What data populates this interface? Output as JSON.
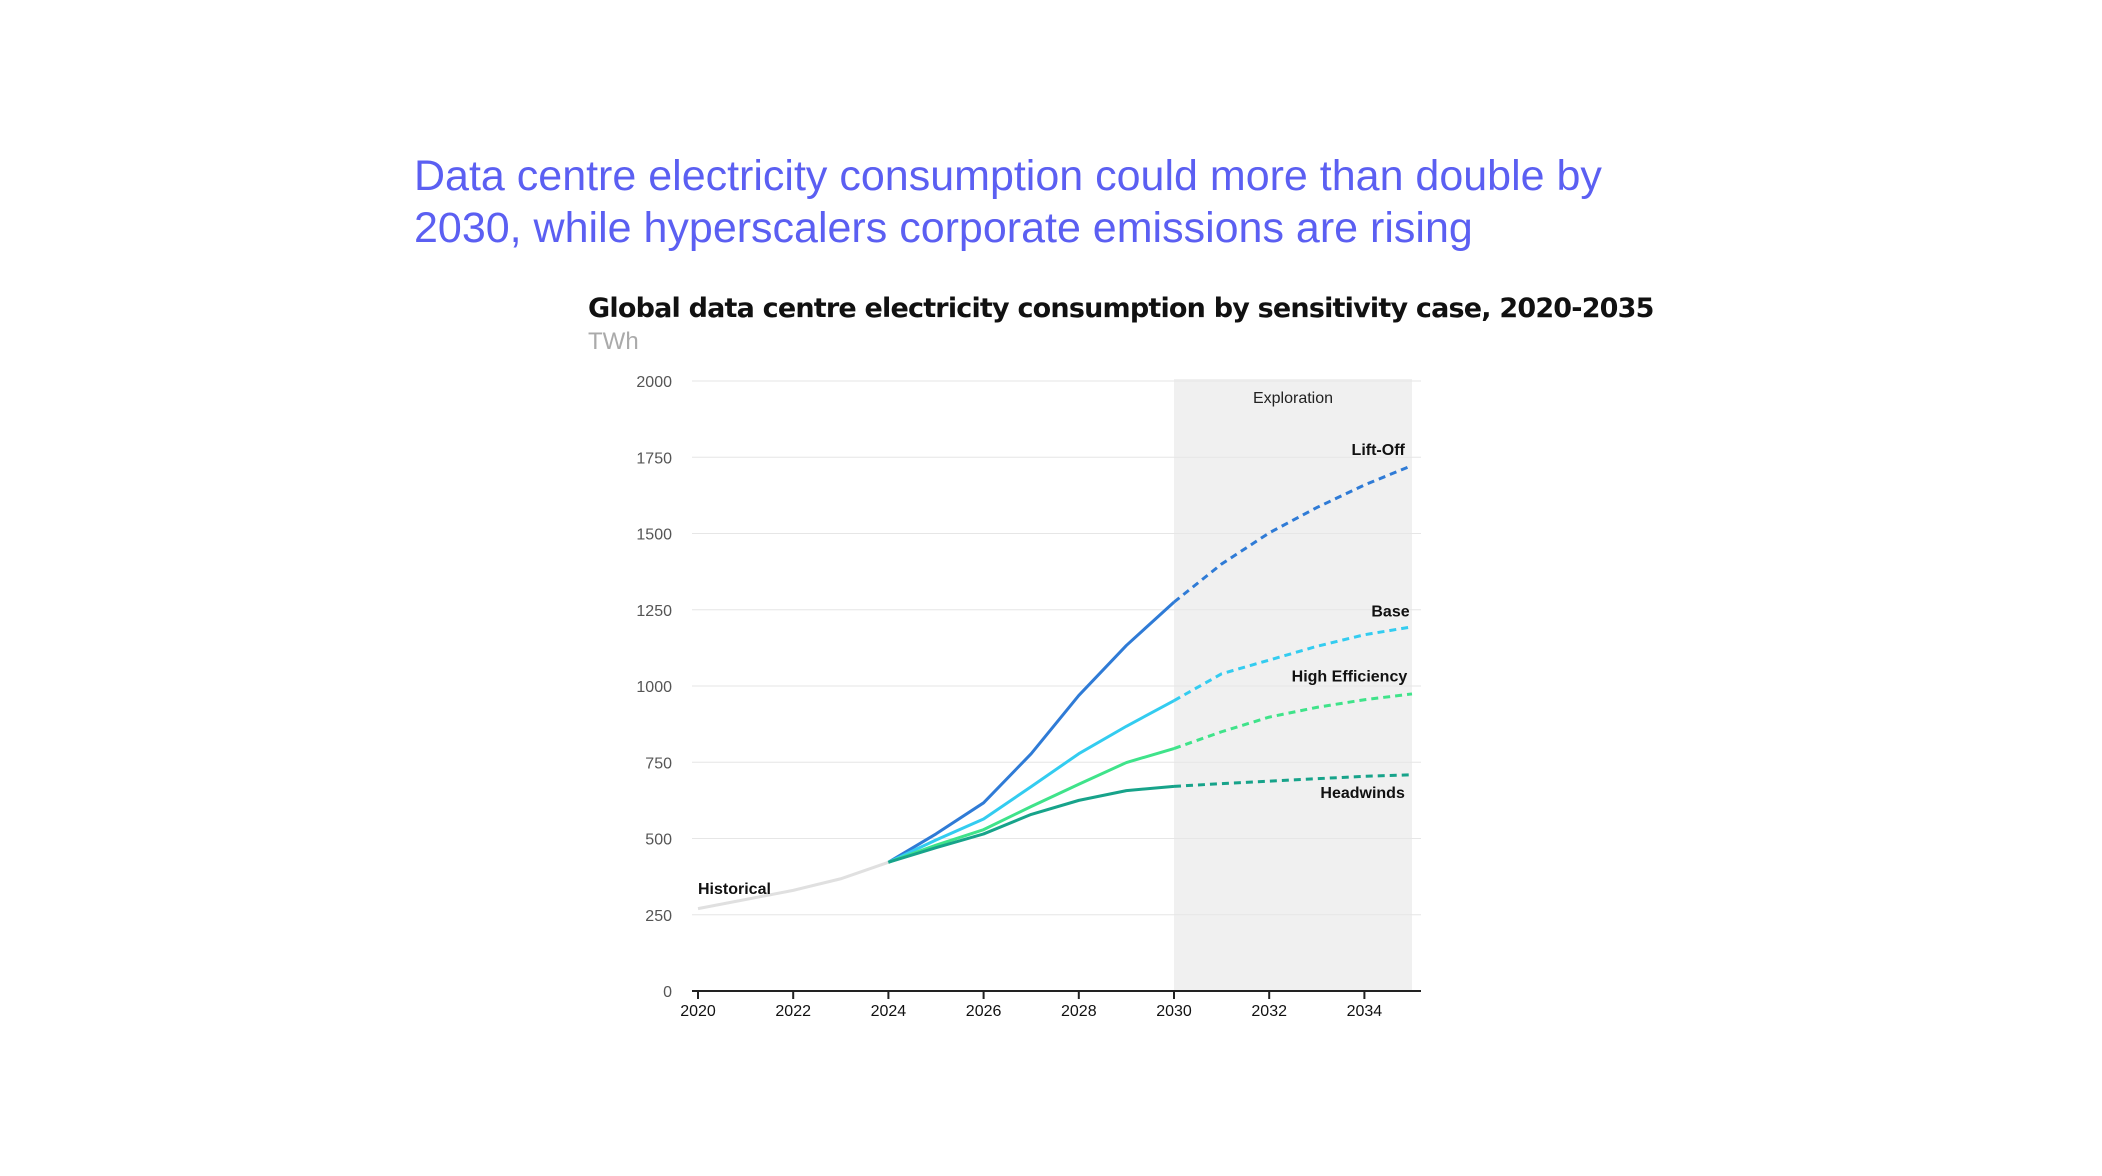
{
  "headline": "Data centre electricity consumption could more than double by 2030, while hyperscalers corporate emissions are rising",
  "chart_data": {
    "type": "line",
    "title": "Global data centre electricity consumption by sensitivity case, 2020-2035",
    "ylabel": "TWh",
    "xlabel": "",
    "xlim": [
      2020,
      2035
    ],
    "ylim": [
      0,
      2000
    ],
    "x_ticks": [
      "2020",
      "2022",
      "2024",
      "2026",
      "2028",
      "2030",
      "2032",
      "2034"
    ],
    "y_ticks": [
      "0",
      "250",
      "500",
      "750",
      "1000",
      "1250",
      "1500",
      "1750",
      "2000"
    ],
    "grid": "horizontal",
    "shaded_region": {
      "label": "Exploration",
      "from": 2030,
      "to": 2035,
      "color": "#f0f0f0"
    },
    "series": [
      {
        "name": "Historical",
        "color": "#e0e0e0",
        "style": "solid",
        "x": [
          2020,
          2021,
          2022,
          2023,
          2024
        ],
        "y": [
          270,
          300,
          330,
          368,
          422
        ]
      },
      {
        "name": "Lift-Off",
        "color": "#2f7bd6",
        "style": "solid-then-dashed",
        "dashed_from": 2030,
        "x": [
          2024,
          2025,
          2026,
          2027,
          2028,
          2029,
          2030,
          2031,
          2032,
          2033,
          2034,
          2035
        ],
        "y": [
          422,
          515,
          617,
          778,
          969,
          1133,
          1275,
          1400,
          1502,
          1585,
          1659,
          1723
        ]
      },
      {
        "name": "Base",
        "color": "#33ccf0",
        "style": "solid-then-dashed",
        "dashed_from": 2030,
        "x": [
          2024,
          2025,
          2026,
          2027,
          2028,
          2029,
          2030,
          2031,
          2032,
          2033,
          2034,
          2035
        ],
        "y": [
          422,
          495,
          564,
          670,
          778,
          868,
          952,
          1040,
          1085,
          1130,
          1168,
          1194
        ]
      },
      {
        "name": "High Efficiency",
        "color": "#3fe38a",
        "style": "solid-then-dashed",
        "dashed_from": 2030,
        "x": [
          2024,
          2025,
          2026,
          2027,
          2028,
          2029,
          2030,
          2031,
          2032,
          2033,
          2034,
          2035
        ],
        "y": [
          422,
          478,
          529,
          605,
          678,
          749,
          795,
          850,
          898,
          930,
          955,
          974
        ]
      },
      {
        "name": "Headwinds",
        "color": "#17a38a",
        "style": "solid-then-dashed",
        "dashed_from": 2030,
        "x": [
          2024,
          2025,
          2026,
          2027,
          2028,
          2029,
          2030,
          2031,
          2032,
          2033,
          2034,
          2035
        ],
        "y": [
          422,
          470,
          515,
          579,
          625,
          657,
          671,
          680,
          688,
          696,
          704,
          709
        ]
      }
    ]
  }
}
